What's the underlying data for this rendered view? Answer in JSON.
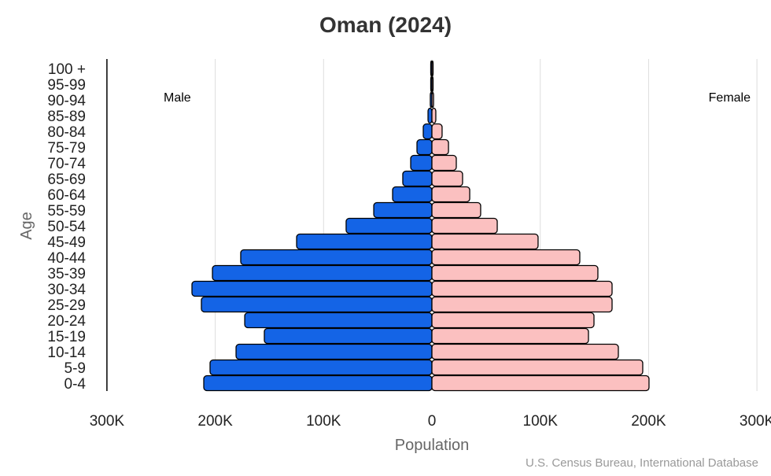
{
  "chart_data": {
    "type": "bar",
    "orientation": "horizontal-pyramid",
    "title": "Oman (2024)",
    "xlabel": "Population",
    "ylabel": "Age",
    "source": "U.S. Census Bureau, International Database",
    "xlim": [
      -300000,
      300000
    ],
    "x_tick_labels": [
      "300K",
      "200K",
      "100K",
      "0",
      "100K",
      "200K",
      "300K"
    ],
    "x_tick_values": [
      -300000,
      -200000,
      -100000,
      0,
      100000,
      200000,
      300000
    ],
    "grid": true,
    "categories": [
      "0-4",
      "5-9",
      "10-14",
      "15-19",
      "20-24",
      "25-29",
      "30-34",
      "35-39",
      "40-44",
      "45-49",
      "50-54",
      "55-59",
      "60-64",
      "65-69",
      "70-74",
      "75-79",
      "80-84",
      "85-89",
      "90-94",
      "95-99",
      "100 +"
    ],
    "series": [
      {
        "name": "Male",
        "color": "#1464E6",
        "values": [
          210600,
          204800,
          180800,
          154700,
          172800,
          212800,
          221500,
          202600,
          176500,
          124900,
          79200,
          53700,
          36300,
          26900,
          19600,
          13800,
          8000,
          3600,
          1500,
          500,
          200
        ]
      },
      {
        "name": "Female",
        "color": "#FBC0C0",
        "values": [
          200400,
          194600,
          172100,
          144500,
          149600,
          166300,
          166300,
          153200,
          136500,
          98000,
          60300,
          45000,
          34900,
          28300,
          22500,
          15300,
          9400,
          3600,
          1500,
          700,
          300
        ]
      }
    ],
    "legend": {
      "male_position": "top-left",
      "female_position": "top-right"
    }
  }
}
